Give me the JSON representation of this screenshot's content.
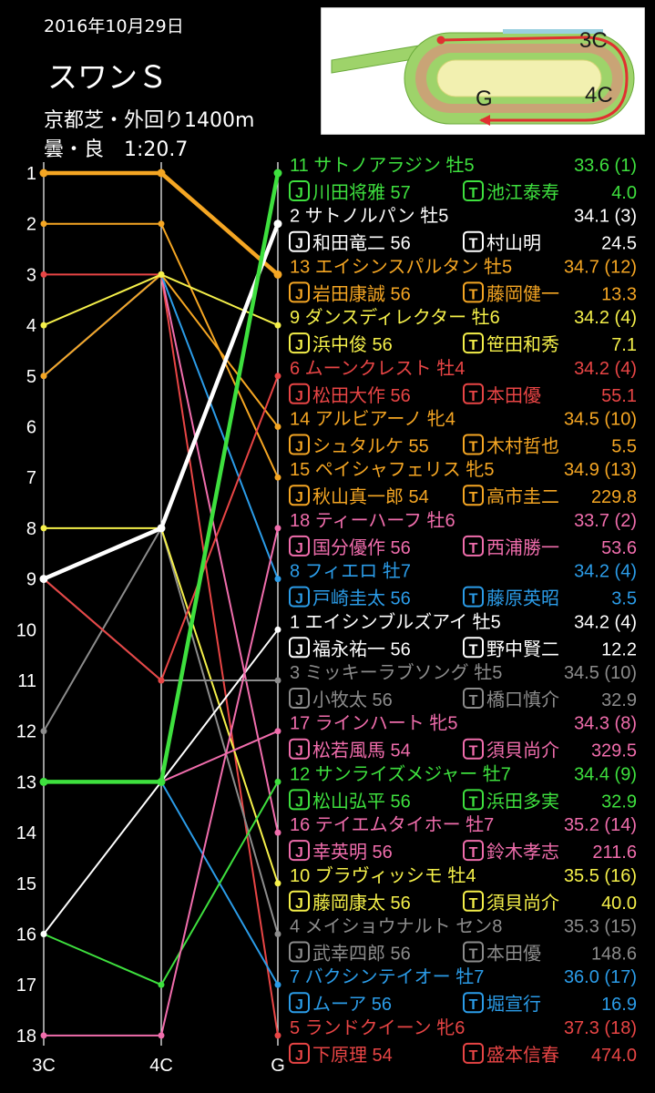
{
  "header": {
    "date": "2016年10月29日",
    "race": "スワンＳ",
    "course": "京都芝・外回り1400m",
    "condition": "曇・良　1:20.7"
  },
  "map": {
    "label_3c": "3C",
    "label_4c": "4C",
    "label_g": "G"
  },
  "chart_data": {
    "type": "line",
    "categories": [
      "3C",
      "4C",
      "G"
    ],
    "y_ticks": [
      "1",
      "2",
      "3",
      "4",
      "5",
      "6",
      "7",
      "8",
      "9",
      "10",
      "11",
      "12",
      "13",
      "14",
      "15",
      "16",
      "17",
      "18"
    ],
    "y_range": [
      1,
      18
    ],
    "y_inverted": true,
    "horses": [
      {
        "num": "11",
        "name": "サトノアラジン",
        "sex_age": "牡5",
        "last3f": "33.6",
        "rank3f": "(1)",
        "jockey": "川田将雅",
        "weight": "57",
        "trainer": "池江泰寿",
        "odds": "4.0",
        "color": "#3ee03e",
        "pos": [
          13,
          13,
          1
        ],
        "bold": true
      },
      {
        "num": "2",
        "name": "サトノルパン",
        "sex_age": "牡5",
        "last3f": "34.1",
        "rank3f": "(3)",
        "jockey": "和田竜二",
        "weight": "56",
        "trainer": "村山明",
        "odds": "24.5",
        "color": "#ffffff",
        "pos": [
          9,
          8,
          2
        ],
        "bold": true
      },
      {
        "num": "13",
        "name": "エイシンスパルタン",
        "sex_age": "牡5",
        "last3f": "34.7",
        "rank3f": "(12)",
        "jockey": "岩田康誠",
        "weight": "56",
        "trainer": "藤岡健一",
        "odds": "13.3",
        "color": "#f5a623",
        "pos": [
          1,
          1,
          3
        ],
        "bold": true
      },
      {
        "num": "9",
        "name": "ダンスディレクター",
        "sex_age": "牡6",
        "last3f": "34.2",
        "rank3f": "(4)",
        "jockey": "浜中俊",
        "weight": "56",
        "trainer": "笹田和秀",
        "odds": "7.1",
        "color": "#f5f04a",
        "pos": [
          4,
          3,
          4
        ],
        "bold": false
      },
      {
        "num": "6",
        "name": "ムーンクレスト",
        "sex_age": "牡4",
        "last3f": "34.2",
        "rank3f": "(4)",
        "jockey": "松田大作",
        "weight": "56",
        "trainer": "本田優",
        "odds": "55.1",
        "color": "#e84545",
        "pos": [
          9,
          11,
          5
        ],
        "bold": false
      },
      {
        "num": "14",
        "name": "アルビアーノ",
        "sex_age": "牝4",
        "last3f": "34.5",
        "rank3f": "(10)",
        "jockey": "シュタルケ",
        "weight": "55",
        "trainer": "木村哲也",
        "odds": "5.5",
        "color": "#f5a623",
        "pos": [
          5,
          3,
          6
        ],
        "bold": false
      },
      {
        "num": "15",
        "name": "ペイシャフェリス",
        "sex_age": "牝5",
        "last3f": "34.9",
        "rank3f": "(13)",
        "jockey": "秋山真一郎",
        "weight": "54",
        "trainer": "高市圭二",
        "odds": "229.8",
        "color": "#f5a623",
        "pos": [
          2,
          2,
          7
        ],
        "bold": false
      },
      {
        "num": "18",
        "name": "ティーハーフ",
        "sex_age": "牡6",
        "last3f": "33.7",
        "rank3f": "(2)",
        "jockey": "国分優作",
        "weight": "56",
        "trainer": "西浦勝一",
        "odds": "53.6",
        "color": "#f06dac",
        "pos": [
          18,
          18,
          8
        ],
        "bold": false
      },
      {
        "num": "8",
        "name": "フィエロ",
        "sex_age": "牡7",
        "last3f": "34.2",
        "rank3f": "(4)",
        "jockey": "戸崎圭太",
        "weight": "56",
        "trainer": "藤原英昭",
        "odds": "3.5",
        "color": "#2b9ce8",
        "pos": [
          5,
          3,
          9
        ],
        "bold": false
      },
      {
        "num": "1",
        "name": "エイシンブルズアイ",
        "sex_age": "牡5",
        "last3f": "34.2",
        "rank3f": "(4)",
        "jockey": "福永祐一",
        "weight": "56",
        "trainer": "野中賢二",
        "odds": "12.2",
        "color": "#ffffff",
        "pos": [
          16,
          13,
          10
        ],
        "bold": false
      },
      {
        "num": "3",
        "name": "ミッキーラブソング",
        "sex_age": "牡5",
        "last3f": "34.5",
        "rank3f": "(10)",
        "jockey": "小牧太",
        "weight": "56",
        "trainer": "橋口慎介",
        "odds": "32.9",
        "color": "#8c8c8c",
        "pos": [
          9,
          11,
          11
        ],
        "bold": false
      },
      {
        "num": "17",
        "name": "ラインハート",
        "sex_age": "牝5",
        "last3f": "34.3",
        "rank3f": "(8)",
        "jockey": "松若風馬",
        "weight": "54",
        "trainer": "須貝尚介",
        "odds": "329.5",
        "color": "#f06dac",
        "pos": [
          13,
          13,
          12
        ],
        "bold": false
      },
      {
        "num": "12",
        "name": "サンライズメジャー",
        "sex_age": "牡7",
        "last3f": "34.4",
        "rank3f": "(9)",
        "jockey": "松山弘平",
        "weight": "56",
        "trainer": "浜田多実",
        "odds": "32.9",
        "color": "#3ee03e",
        "pos": [
          16,
          17,
          13
        ],
        "bold": false
      },
      {
        "num": "16",
        "name": "テイエムタイホー",
        "sex_age": "牡7",
        "last3f": "35.2",
        "rank3f": "(14)",
        "jockey": "幸英明",
        "weight": "56",
        "trainer": "鈴木孝志",
        "odds": "211.6",
        "color": "#f06dac",
        "pos": [
          5,
          3,
          14
        ],
        "bold": false
      },
      {
        "num": "10",
        "name": "ブラヴィッシモ",
        "sex_age": "牡4",
        "last3f": "35.5",
        "rank3f": "(16)",
        "jockey": "藤岡康太",
        "weight": "56",
        "trainer": "須貝尚介",
        "odds": "40.0",
        "color": "#f5f04a",
        "pos": [
          8,
          8,
          15
        ],
        "bold": false
      },
      {
        "num": "4",
        "name": "メイショウナルト",
        "sex_age": "セン8",
        "last3f": "35.3",
        "rank3f": "(15)",
        "jockey": "武幸四郎",
        "weight": "56",
        "trainer": "本田優",
        "odds": "148.6",
        "color": "#8c8c8c",
        "pos": [
          12,
          8,
          16
        ],
        "bold": false
      },
      {
        "num": "7",
        "name": "バクシンテイオー",
        "sex_age": "牡7",
        "last3f": "36.0",
        "rank3f": "(17)",
        "jockey": "ムーア",
        "weight": "56",
        "trainer": "堀宣行",
        "odds": "16.9",
        "color": "#2b9ce8",
        "pos": [
          13,
          13,
          17
        ],
        "bold": false
      },
      {
        "num": "5",
        "name": "ランドクイーン",
        "sex_age": "牝6",
        "last3f": "37.3",
        "rank3f": "(18)",
        "jockey": "下原理",
        "weight": "54",
        "trainer": "盛本信春",
        "odds": "474.0",
        "color": "#e84545",
        "pos": [
          3,
          3,
          18
        ],
        "bold": false
      }
    ]
  }
}
